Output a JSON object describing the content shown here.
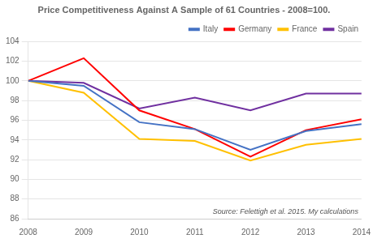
{
  "chart_data": {
    "type": "line",
    "title": "Price Competitiveness Against A Sample of 61 Countries - 2008=100.",
    "x": [
      2008,
      2009,
      2010,
      2011,
      2012,
      2013,
      2014
    ],
    "series": [
      {
        "name": "Italy",
        "color": "#4472C4",
        "values": [
          100.0,
          99.5,
          95.8,
          95.1,
          93.0,
          94.9,
          95.6
        ]
      },
      {
        "name": "Germany",
        "color": "#FF0000",
        "values": [
          100.0,
          102.3,
          97.0,
          95.1,
          92.3,
          95.0,
          96.1
        ]
      },
      {
        "name": "France",
        "color": "#FFC000",
        "values": [
          100.0,
          98.8,
          94.1,
          93.9,
          91.9,
          93.5,
          94.1
        ]
      },
      {
        "name": "Spain",
        "color": "#7030A0",
        "values": [
          100.0,
          99.8,
          97.2,
          98.3,
          97.0,
          98.7,
          98.7
        ]
      }
    ],
    "xlim": [
      2008,
      2014
    ],
    "xticks": [
      2008,
      2009,
      2010,
      2011,
      2012,
      2013,
      2014
    ],
    "ylim": [
      86,
      104
    ],
    "yticks": [
      86,
      88,
      90,
      92,
      94,
      96,
      98,
      100,
      102,
      104
    ],
    "grid": true,
    "legend": "upper right",
    "annotations": [
      "Source: Felettigh et al. 2015. My calculations"
    ]
  }
}
